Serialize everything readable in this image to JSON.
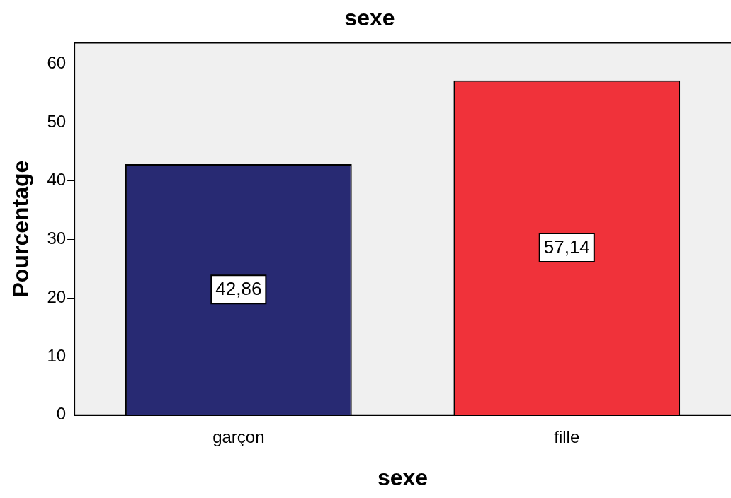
{
  "chart_data": {
    "type": "bar",
    "title": "sexe",
    "xlabel": "sexe",
    "ylabel": "Pourcentage",
    "categories": [
      "garçon",
      "fille"
    ],
    "values": [
      42.86,
      57.14
    ],
    "colors": [
      "#282a73",
      "#f0323a"
    ],
    "ylim": [
      0,
      63.6
    ],
    "yticks": [
      0,
      10,
      20,
      30,
      40,
      50,
      60
    ],
    "value_labels": [
      "42,86",
      "57,14"
    ],
    "grid": false,
    "legend": false
  }
}
